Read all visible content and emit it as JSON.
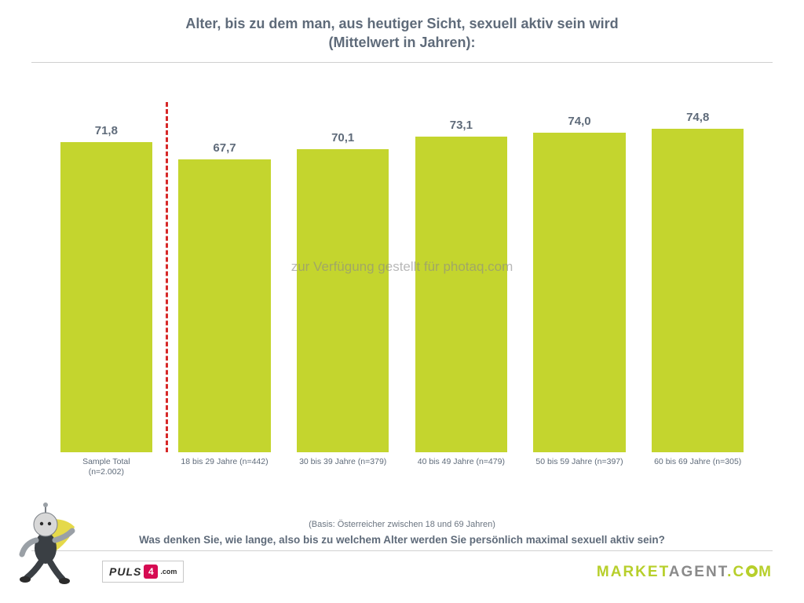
{
  "title": {
    "line1": "Alter, bis zu dem man, aus heutiger Sicht, sexuell aktiv sein wird",
    "line2": "(Mittelwert in Jahren):",
    "color": "#5f6b7a",
    "fontsize": 18
  },
  "chart": {
    "type": "bar",
    "y_max": 80,
    "y_min": 0,
    "bar_color": "#c4d52e",
    "value_color": "#5f6b7a",
    "value_fontsize": 15,
    "label_color": "#5f6b7a",
    "label_fontsize": 10.5,
    "background_color": "#ffffff",
    "bar_width_ratio": 0.78,
    "divider_after_index": 0,
    "divider_color": "#d62828",
    "divider_dash": "3px dashed",
    "bars": [
      {
        "value": 71.8,
        "value_label": "71,8",
        "label_line1": "Sample Total",
        "label_line2": "(n=2.002)"
      },
      {
        "value": 67.7,
        "value_label": "67,7",
        "label_line1": "18 bis 29 Jahre (n=442)",
        "label_line2": ""
      },
      {
        "value": 70.1,
        "value_label": "70,1",
        "label_line1": "30 bis 39 Jahre (n=379)",
        "label_line2": ""
      },
      {
        "value": 73.1,
        "value_label": "73,1",
        "label_line1": "40 bis 49 Jahre (n=479)",
        "label_line2": ""
      },
      {
        "value": 74.0,
        "value_label": "74,0",
        "label_line1": "50 bis 59 Jahre (n=397)",
        "label_line2": ""
      },
      {
        "value": 74.8,
        "value_label": "74,8",
        "label_line1": "60 bis 69 Jahre (n=305)",
        "label_line2": ""
      }
    ]
  },
  "watermark": "zur Verfügung gestellt für photaq.com",
  "footer": {
    "basis": "(Basis: Österreicher zwischen 18 und 69 Jahren)",
    "question": "Was denken Sie, wie lange, also bis zu welchem Alter werden Sie persönlich maximal sexuell aktiv sein?"
  },
  "logos": {
    "puls4_text": "PULS",
    "puls4_num": "4",
    "puls4_suffix": ".com",
    "marketagent_part1": "MARKET",
    "marketagent_part2": "AGENT",
    "marketagent_suffix": ".C",
    "marketagent_suffix2": "M",
    "marketagent_green": "#b7cf2b",
    "marketagent_grey": "#8a8a8a"
  },
  "mascot": {
    "body_grey": "#9aa0a6",
    "body_dark": "#3a3f44",
    "cape": "#e5d94a",
    "skin": "#d8d8d8"
  }
}
